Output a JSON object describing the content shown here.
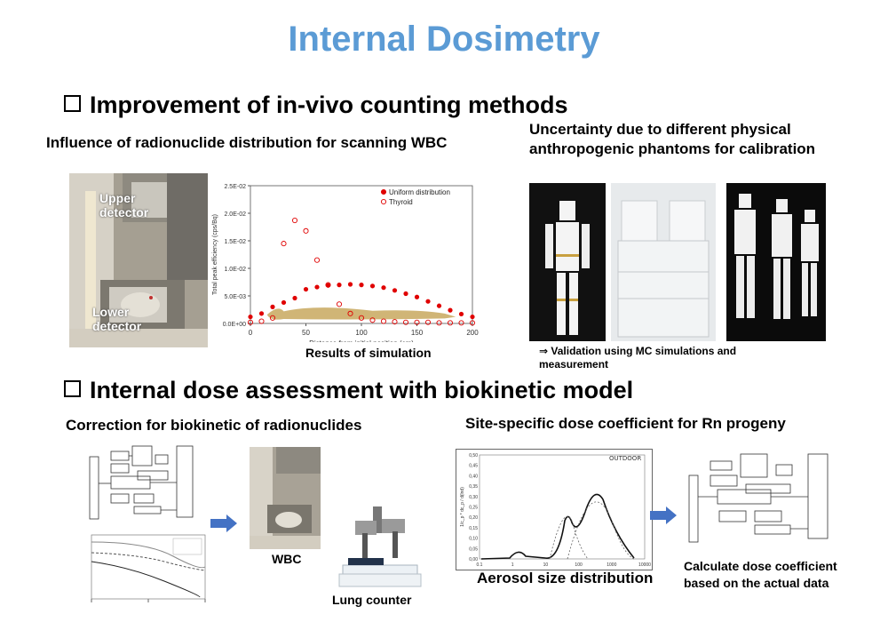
{
  "title": "Internal Dosimetry",
  "section1": {
    "heading": "Improvement of in-vivo counting methods",
    "left_subtitle": "Influence of radionuclide distribution for scanning WBC",
    "photo_labels": {
      "upper": "Upper\ndetector",
      "lower": "Lower\ndetector"
    },
    "right_subtitle": "Uncertainty due to different physical anthropogenic phantoms for calibration",
    "validation_note": "⇒ Validation using MC simulations and measurement"
  },
  "scatter_caption": "Results  of simulation",
  "chart_data": {
    "type": "scatter",
    "xlabel": "Distance from initial position (cm)",
    "ylabel": "Total peak efficiency (cps/Bq)",
    "xlim": [
      0,
      200
    ],
    "ylim": [
      0,
      0.025
    ],
    "xticks": [
      0,
      50,
      100,
      150,
      200
    ],
    "yticks": [
      "0.0E+00",
      "5.0E-03",
      "1.0E-02",
      "1.5E-02",
      "2.0E-02",
      "2.5E-02"
    ],
    "legend_position": "top-right",
    "series": [
      {
        "name": "Uniform distribution",
        "color": "#e00000",
        "marker": "filled-circle",
        "x": [
          0,
          10,
          20,
          30,
          40,
          50,
          60,
          70,
          80,
          90,
          100,
          110,
          120,
          130,
          140,
          150,
          160,
          170,
          180,
          190,
          200
        ],
        "y": [
          0.0012,
          0.0018,
          0.003,
          0.0038,
          0.0046,
          0.0062,
          0.0066,
          0.0069,
          0.007,
          0.0071,
          0.007,
          0.0068,
          0.0065,
          0.006,
          0.0054,
          0.0048,
          0.004,
          0.0032,
          0.0024,
          0.0017,
          0.0012
        ]
      },
      {
        "name": "Thyroid",
        "color": "#e00000",
        "marker": "open-circle",
        "x": [
          0,
          10,
          20,
          30,
          40,
          50,
          60,
          70,
          80,
          90,
          100,
          110,
          120,
          130,
          140,
          150,
          160,
          170,
          180,
          190,
          200
        ],
        "y": [
          0.0002,
          0.0004,
          0.001,
          0.0145,
          0.0187,
          0.0168,
          0.0115,
          0.007,
          0.0035,
          0.0018,
          0.001,
          0.0006,
          0.0004,
          0.0003,
          0.0002,
          0.0002,
          0.0002,
          0.0001,
          0.0001,
          0.0001,
          0.0001
        ]
      }
    ]
  },
  "section2": {
    "heading": "Internal dose assessment with biokinetic model",
    "left_subtitle": "Correction for biokinetic of radionuclides",
    "wbc_label": "WBC",
    "lung_label": "Lung counter",
    "right_subtitle": "Site-specific dose coefficient for Rn progeny",
    "aerosol_label": "Aerosol size distribution",
    "aerosol_panel_label": "OUTDOOR",
    "calc_text": "Calculate dose coefficient based on the actual data"
  },
  "aerosol_chart": {
    "type": "line",
    "ylabel": "1/c_p * dc_p / d(lnd)",
    "ylim": [
      0,
      0.5
    ],
    "yticks": [
      "0,00",
      "0,05",
      "0,10",
      "0,15",
      "0,20",
      "0,25",
      "0,30",
      "0,35",
      "0,40",
      "0,45",
      "0,50"
    ],
    "xticks": [
      "0.1",
      "1",
      "10",
      "100",
      "1000",
      "10000"
    ]
  },
  "colors": {
    "title": "#5b9bd5",
    "arrow": "#4472c4",
    "marker": "#e00000"
  }
}
